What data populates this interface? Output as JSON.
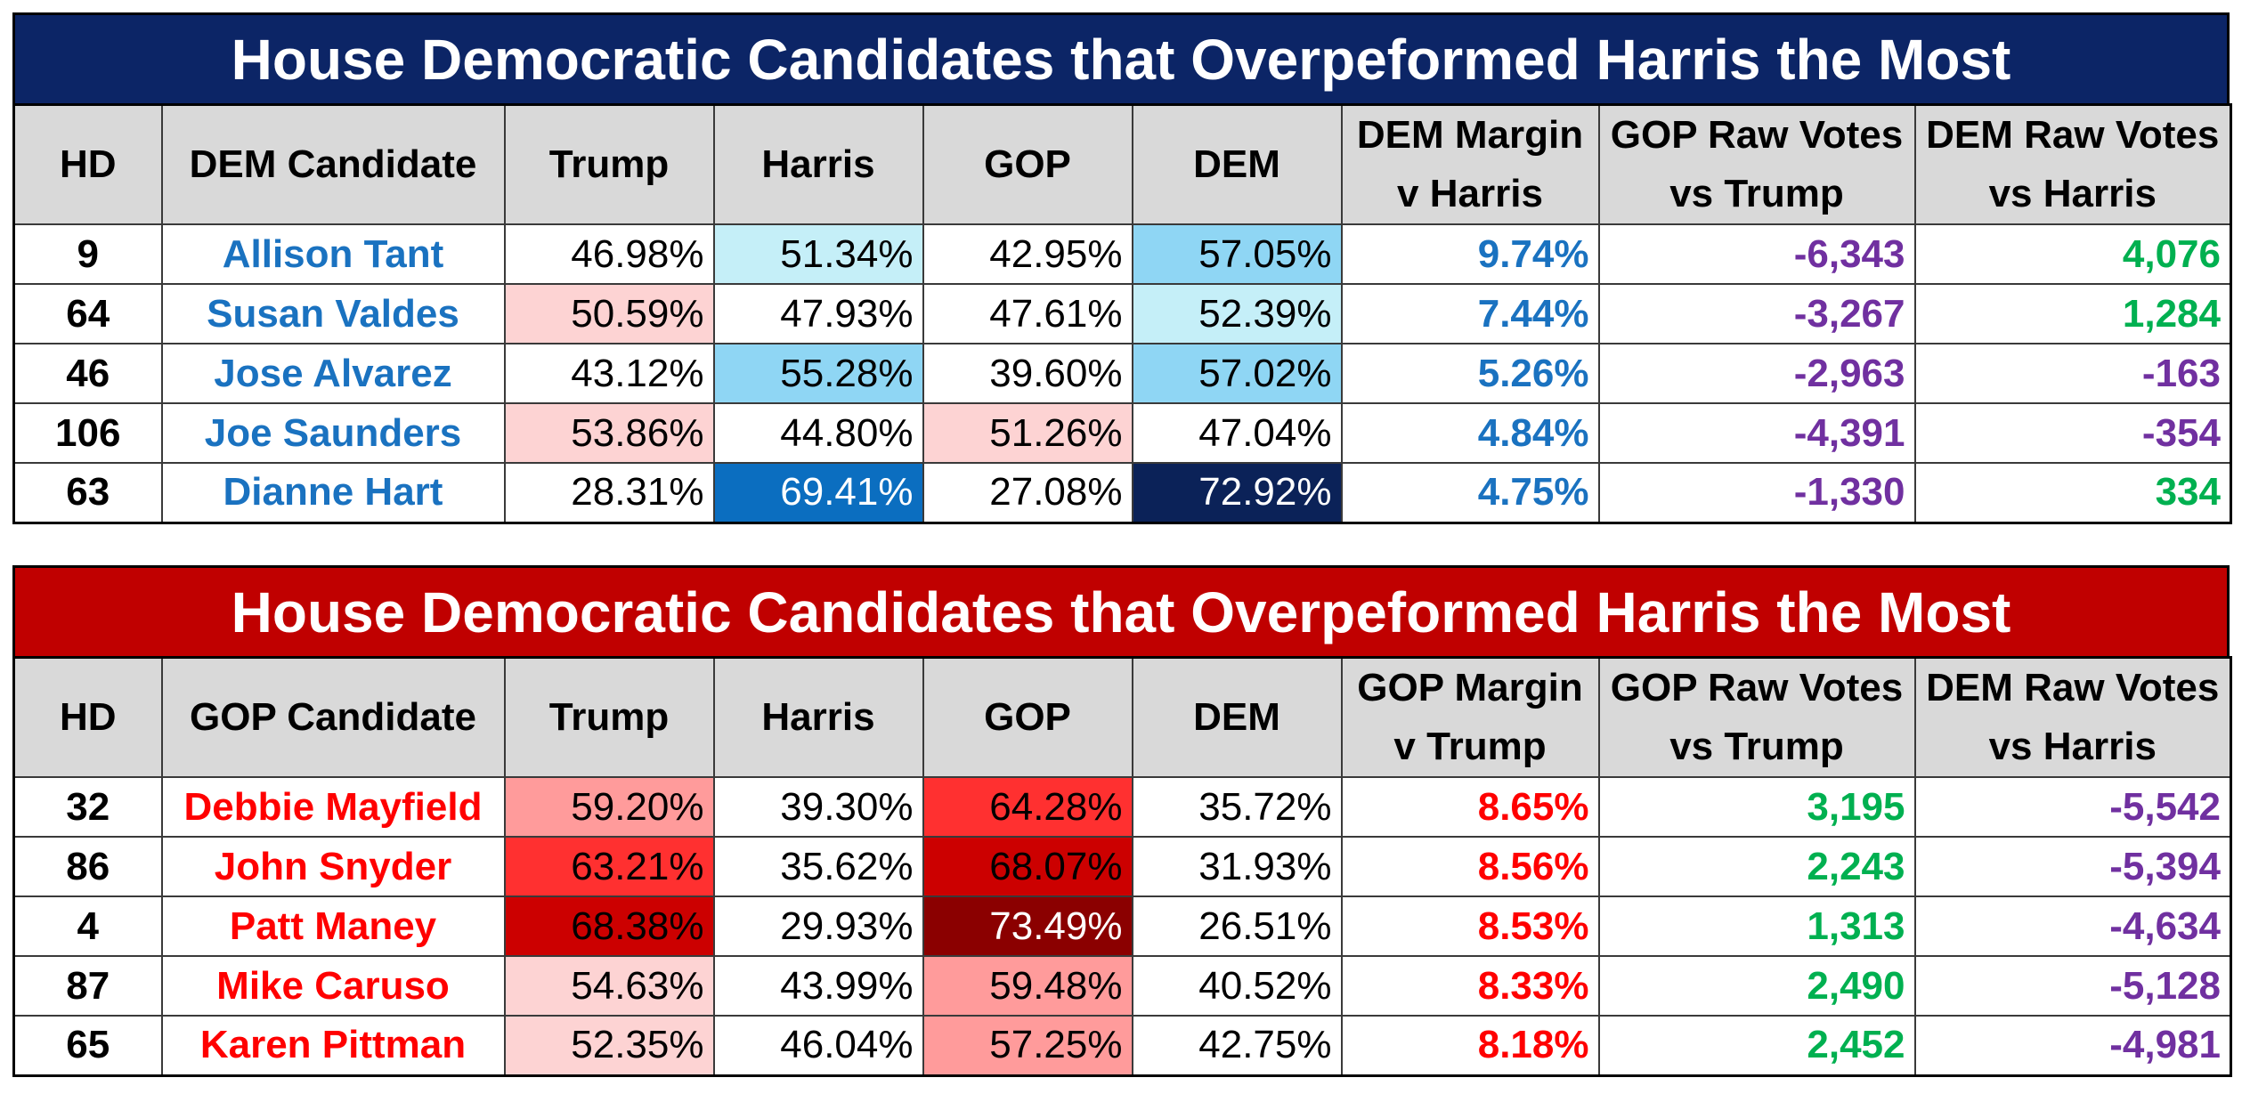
{
  "top_table": {
    "title": "House Democratic Candidates that Overpeformed Harris the Most",
    "headers": [
      "HD",
      "DEM Candidate",
      "Trump",
      "Harris",
      "GOP",
      "DEM",
      "DEM Margin v Harris",
      "GOP Raw Votes vs Trump",
      "DEM Raw Votes vs Harris"
    ],
    "rows": [
      {
        "hd": "9",
        "candidate": "Allison Tant",
        "trump": "46.98%",
        "harris": "51.34%",
        "gop": "42.95%",
        "dem": "57.05%",
        "margin": "9.74%",
        "gop_raw": "-6,343",
        "dem_raw": "4,076",
        "colors": {
          "trump": "#ffffff",
          "harris": "#c5eff8",
          "gop": "#ffffff",
          "dem": "#8fd6f4"
        },
        "dem_raw_color": "#00b050"
      },
      {
        "hd": "64",
        "candidate": "Susan Valdes",
        "trump": "50.59%",
        "harris": "47.93%",
        "gop": "47.61%",
        "dem": "52.39%",
        "margin": "7.44%",
        "gop_raw": "-3,267",
        "dem_raw": "1,284",
        "colors": {
          "trump": "#fdd3d3",
          "harris": "#ffffff",
          "gop": "#ffffff",
          "dem": "#c5eff8"
        },
        "dem_raw_color": "#00b050"
      },
      {
        "hd": "46",
        "candidate": "Jose Alvarez",
        "trump": "43.12%",
        "harris": "55.28%",
        "gop": "39.60%",
        "dem": "57.02%",
        "margin": "5.26%",
        "gop_raw": "-2,963",
        "dem_raw": "-163",
        "colors": {
          "trump": "#ffffff",
          "harris": "#8fd6f4",
          "gop": "#ffffff",
          "dem": "#8fd6f4"
        },
        "dem_raw_color": "#7030a0"
      },
      {
        "hd": "106",
        "candidate": "Joe Saunders",
        "trump": "53.86%",
        "harris": "44.80%",
        "gop": "51.26%",
        "dem": "47.04%",
        "margin": "4.84%",
        "gop_raw": "-4,391",
        "dem_raw": "-354",
        "colors": {
          "trump": "#fdd3d3",
          "harris": "#ffffff",
          "gop": "#fdd3d3",
          "dem": "#ffffff"
        },
        "dem_raw_color": "#7030a0"
      },
      {
        "hd": "63",
        "candidate": "Dianne Hart",
        "trump": "28.31%",
        "harris": "69.41%",
        "gop": "27.08%",
        "dem": "72.92%",
        "margin": "4.75%",
        "gop_raw": "-1,330",
        "dem_raw": "334",
        "colors": {
          "trump": "#ffffff",
          "harris": "#0b6ec0",
          "gop": "#ffffff",
          "dem": "#0b2258"
        },
        "dem_raw_color": "#00b050"
      }
    ]
  },
  "bottom_table": {
    "title": "House Democratic Candidates that Overpeformed Harris the Most",
    "headers": [
      "HD",
      "GOP Candidate",
      "Trump",
      "Harris",
      "GOP",
      "DEM",
      "GOP Margin v Trump",
      "GOP Raw Votes vs Trump",
      "DEM Raw Votes vs Harris"
    ],
    "rows": [
      {
        "hd": "32",
        "candidate": "Debbie Mayfield",
        "trump": "59.20%",
        "harris": "39.30%",
        "gop": "64.28%",
        "dem": "35.72%",
        "margin": "8.65%",
        "gop_raw": "3,195",
        "dem_raw": "-5,542",
        "colors": {
          "trump": "#ff9b9b",
          "harris": "#ffffff",
          "gop": "#ff3030",
          "dem": "#ffffff"
        }
      },
      {
        "hd": "86",
        "candidate": "John Snyder",
        "trump": "63.21%",
        "harris": "35.62%",
        "gop": "68.07%",
        "dem": "31.93%",
        "margin": "8.56%",
        "gop_raw": "2,243",
        "dem_raw": "-5,394",
        "colors": {
          "trump": "#ff3030",
          "harris": "#ffffff",
          "gop": "#cc0000",
          "dem": "#ffffff"
        }
      },
      {
        "hd": "4",
        "candidate": "Patt Maney",
        "trump": "68.38%",
        "harris": "29.93%",
        "gop": "73.49%",
        "dem": "26.51%",
        "margin": "8.53%",
        "gop_raw": "1,313",
        "dem_raw": "-4,634",
        "colors": {
          "trump": "#cc0000",
          "harris": "#ffffff",
          "gop": "#8b0000",
          "dem": "#ffffff"
        }
      },
      {
        "hd": "87",
        "candidate": "Mike Caruso",
        "trump": "54.63%",
        "harris": "43.99%",
        "gop": "59.48%",
        "dem": "40.52%",
        "margin": "8.33%",
        "gop_raw": "2,490",
        "dem_raw": "-5,128",
        "colors": {
          "trump": "#fdd3d3",
          "harris": "#ffffff",
          "gop": "#ff9b9b",
          "dem": "#ffffff"
        }
      },
      {
        "hd": "65",
        "candidate": "Karen Pittman",
        "trump": "52.35%",
        "harris": "46.04%",
        "gop": "57.25%",
        "dem": "42.75%",
        "margin": "8.18%",
        "gop_raw": "2,452",
        "dem_raw": "-4,981",
        "colors": {
          "trump": "#fdd3d3",
          "harris": "#ffffff",
          "gop": "#ff9b9b",
          "dem": "#ffffff"
        }
      }
    ]
  },
  "chart_data": [
    {
      "type": "table",
      "title": "House Democratic Candidates that Overpeformed Harris the Most",
      "columns": [
        "HD",
        "DEM Candidate",
        "Trump",
        "Harris",
        "GOP",
        "DEM",
        "DEM Margin v Harris",
        "GOP Raw Votes vs Trump",
        "DEM Raw Votes vs Harris"
      ],
      "rows": [
        [
          9,
          "Allison Tant",
          46.98,
          51.34,
          42.95,
          57.05,
          9.74,
          -6343,
          4076
        ],
        [
          64,
          "Susan Valdes",
          50.59,
          47.93,
          47.61,
          52.39,
          7.44,
          -3267,
          1284
        ],
        [
          46,
          "Jose Alvarez",
          43.12,
          55.28,
          39.6,
          57.02,
          5.26,
          -2963,
          -163
        ],
        [
          106,
          "Joe Saunders",
          53.86,
          44.8,
          51.26,
          47.04,
          4.84,
          -4391,
          -354
        ],
        [
          63,
          "Dianne Hart",
          28.31,
          69.41,
          27.08,
          72.92,
          4.75,
          -1330,
          334
        ]
      ]
    },
    {
      "type": "table",
      "title": "House Democratic Candidates that Overpeformed Harris the Most",
      "columns": [
        "HD",
        "GOP Candidate",
        "Trump",
        "Harris",
        "GOP",
        "DEM",
        "GOP Margin v Trump",
        "GOP Raw Votes vs Trump",
        "DEM Raw Votes vs Harris"
      ],
      "rows": [
        [
          32,
          "Debbie Mayfield",
          59.2,
          39.3,
          64.28,
          35.72,
          8.65,
          3195,
          -5542
        ],
        [
          86,
          "John Snyder",
          63.21,
          35.62,
          68.07,
          31.93,
          8.56,
          2243,
          -5394
        ],
        [
          4,
          "Patt Maney",
          68.38,
          29.93,
          73.49,
          26.51,
          8.53,
          1313,
          -4634
        ],
        [
          87,
          "Mike Caruso",
          54.63,
          43.99,
          59.48,
          40.52,
          8.33,
          2490,
          -5128
        ],
        [
          65,
          "Karen Pittman",
          52.35,
          46.04,
          57.25,
          42.75,
          8.18,
          2452,
          -4981
        ]
      ]
    }
  ]
}
